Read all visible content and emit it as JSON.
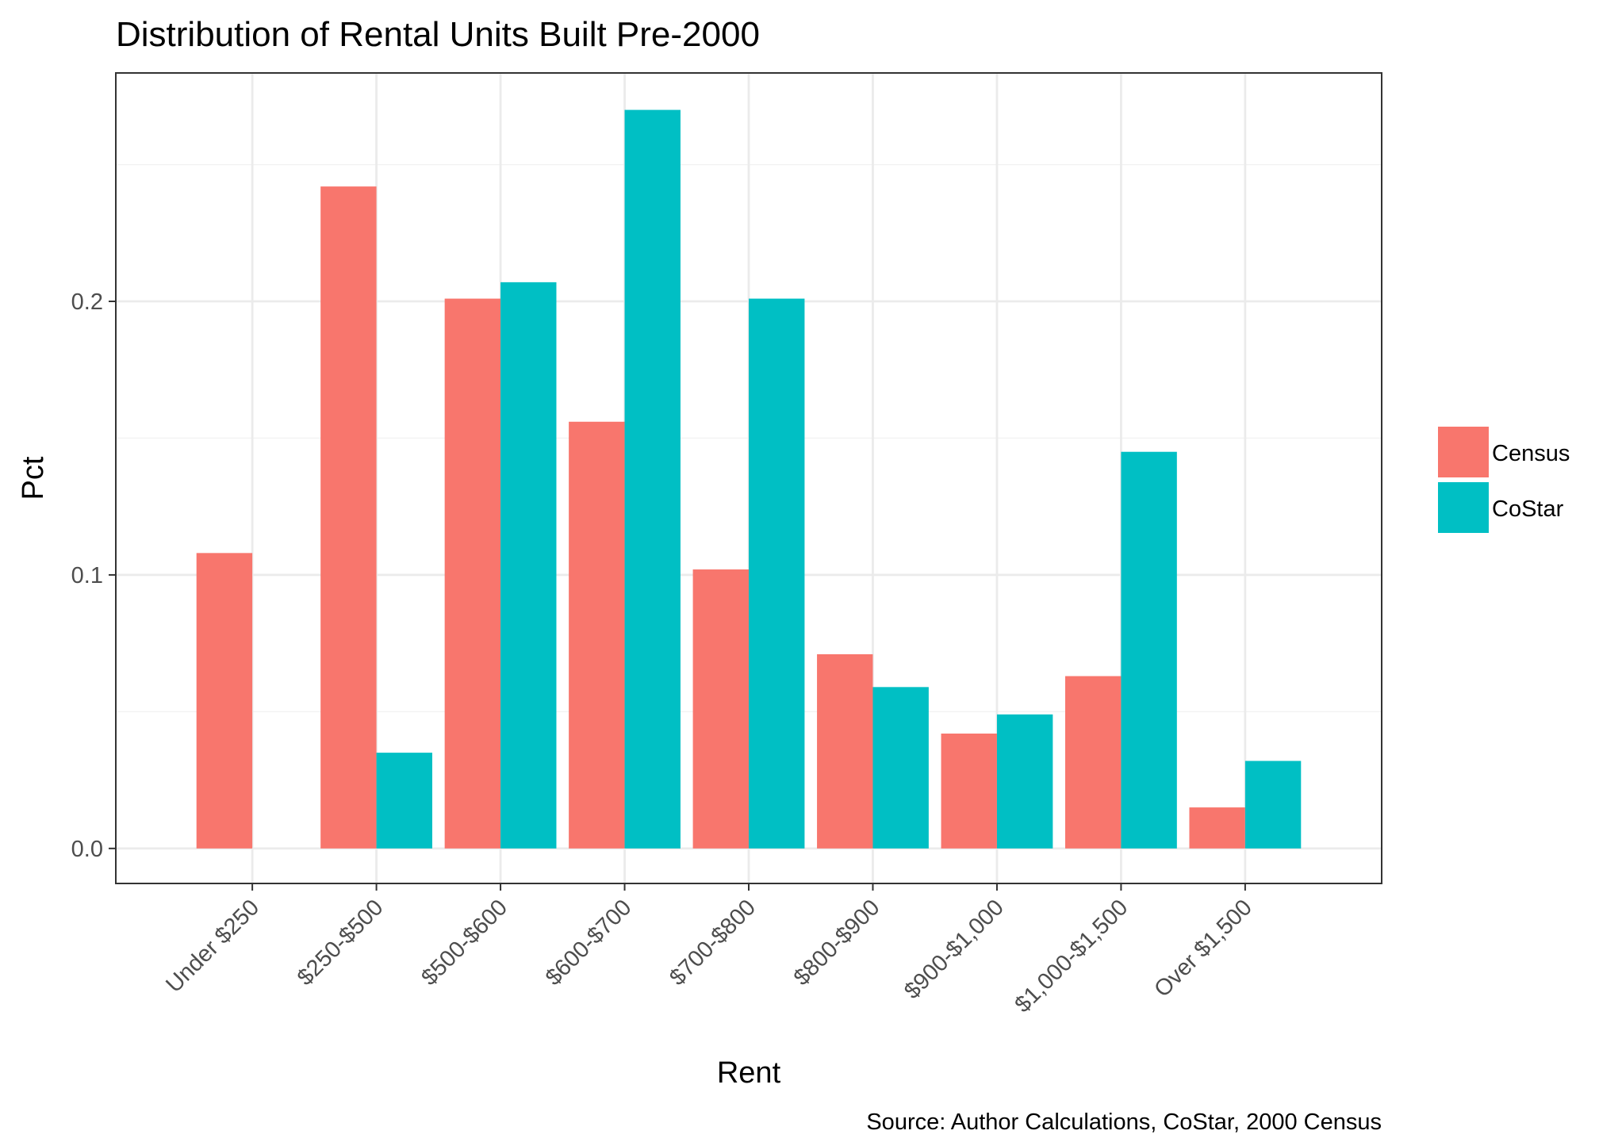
{
  "chart_data": {
    "type": "bar",
    "title": "Distribution of Rental Units Built Pre-2000",
    "xlabel": "Rent",
    "ylabel": "Pct",
    "caption": "Source: Author Calculations, CoStar, 2000 Census",
    "categories": [
      "Under $250",
      "$250-$500",
      "$500-$600",
      "$600-$700",
      "$700-$800",
      "$800-$900",
      "$900-$1,000",
      "$1,000-$1,500",
      "Over $1,500"
    ],
    "series": [
      {
        "name": "Census",
        "color": "#F8766D",
        "values": [
          0.108,
          0.242,
          0.201,
          0.156,
          0.102,
          0.071,
          0.042,
          0.063,
          0.015
        ]
      },
      {
        "name": "CoStar",
        "color": "#00BFC4",
        "values": [
          null,
          0.035,
          0.207,
          0.27,
          0.201,
          0.059,
          0.049,
          0.145,
          0.032
        ]
      }
    ],
    "yticks": [
      0.0,
      0.1,
      0.2
    ],
    "ytick_labels": [
      "0.0",
      "0.1",
      "0.2"
    ],
    "ylim": [
      -0.0128,
      0.2835
    ],
    "grid": true,
    "legend_position": "right",
    "theme": "bw"
  }
}
